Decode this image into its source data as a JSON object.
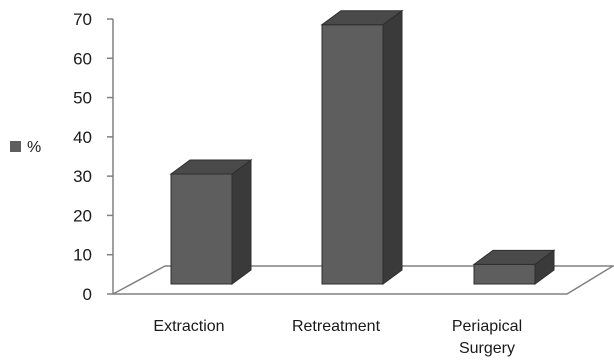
{
  "chart_data": {
    "type": "bar",
    "categories": [
      "Extraction",
      "Retreatment",
      "Periapical Surgery"
    ],
    "category_lines": [
      [
        "Extraction"
      ],
      [
        "Retreatment"
      ],
      [
        "Periapical",
        "Surgery"
      ]
    ],
    "series": [
      {
        "name": "%",
        "values": [
          28,
          66,
          5
        ]
      }
    ],
    "yticks": [
      "0",
      "10",
      "20",
      "30",
      "40",
      "50",
      "60",
      "70"
    ],
    "ylim": [
      0,
      70
    ],
    "grid": false,
    "legend": {
      "position": "left",
      "label": "%"
    },
    "colors": {
      "bar_front": "#5e5e5e",
      "bar_side": "#3a3a3a",
      "bar_top": "#4a4a4a",
      "axis": "#808080",
      "legend_swatch": "#5e5e5e"
    }
  }
}
